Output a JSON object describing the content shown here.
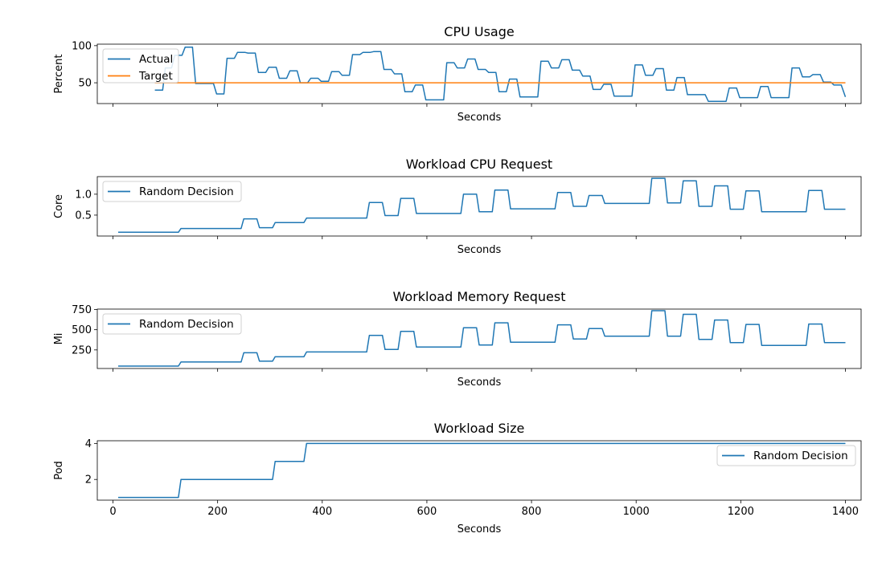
{
  "chart_data": [
    {
      "type": "line",
      "title": "CPU Usage",
      "xlabel": "Seconds",
      "ylabel": "Percent",
      "xlim": [
        -30,
        1430
      ],
      "ylim": [
        22,
        102
      ],
      "yticks": [
        50,
        100
      ],
      "xticks": [
        0,
        200,
        400,
        600,
        800,
        1000,
        1200,
        1400
      ],
      "show_xtick_labels": false,
      "legend": "upper-left",
      "series": [
        {
          "name": "Actual",
          "color": "#1f77b4",
          "step": true,
          "points": [
            [
              80,
              40
            ],
            [
              95,
              40
            ],
            [
              100,
              70
            ],
            [
              112,
              70
            ],
            [
              118,
              87
            ],
            [
              132,
              87
            ],
            [
              138,
              98
            ],
            [
              152,
              98
            ],
            [
              158,
              49
            ],
            [
              192,
              49
            ],
            [
              198,
              35
            ],
            [
              212,
              35
            ],
            [
              218,
              83
            ],
            [
              232,
              83
            ],
            [
              238,
              91
            ],
            [
              252,
              91
            ],
            [
              258,
              90
            ],
            [
              272,
              90
            ],
            [
              278,
              64
            ],
            [
              292,
              64
            ],
            [
              298,
              71
            ],
            [
              312,
              71
            ],
            [
              318,
              56
            ],
            [
              332,
              56
            ],
            [
              338,
              66
            ],
            [
              352,
              66
            ],
            [
              358,
              50
            ],
            [
              372,
              50
            ],
            [
              378,
              56
            ],
            [
              392,
              56
            ],
            [
              398,
              52
            ],
            [
              412,
              52
            ],
            [
              418,
              65
            ],
            [
              432,
              65
            ],
            [
              438,
              60
            ],
            [
              452,
              60
            ],
            [
              458,
              88
            ],
            [
              472,
              88
            ],
            [
              478,
              91
            ],
            [
              492,
              91
            ],
            [
              498,
              92
            ],
            [
              512,
              92
            ],
            [
              518,
              68
            ],
            [
              532,
              68
            ],
            [
              538,
              62
            ],
            [
              552,
              62
            ],
            [
              558,
              38
            ],
            [
              572,
              38
            ],
            [
              578,
              47
            ],
            [
              592,
              47
            ],
            [
              598,
              27
            ],
            [
              632,
              27
            ],
            [
              638,
              77
            ],
            [
              652,
              77
            ],
            [
              658,
              70
            ],
            [
              672,
              70
            ],
            [
              678,
              82
            ],
            [
              692,
              82
            ],
            [
              698,
              68
            ],
            [
              712,
              68
            ],
            [
              718,
              64
            ],
            [
              732,
              64
            ],
            [
              738,
              38
            ],
            [
              752,
              38
            ],
            [
              758,
              55
            ],
            [
              772,
              55
            ],
            [
              778,
              31
            ],
            [
              812,
              31
            ],
            [
              818,
              79
            ],
            [
              832,
              79
            ],
            [
              838,
              70
            ],
            [
              852,
              70
            ],
            [
              858,
              81
            ],
            [
              872,
              81
            ],
            [
              878,
              67
            ],
            [
              892,
              67
            ],
            [
              898,
              59
            ],
            [
              912,
              59
            ],
            [
              918,
              41
            ],
            [
              932,
              41
            ],
            [
              938,
              48
            ],
            [
              952,
              48
            ],
            [
              958,
              32
            ],
            [
              992,
              32
            ],
            [
              998,
              74
            ],
            [
              1012,
              74
            ],
            [
              1018,
              60
            ],
            [
              1032,
              60
            ],
            [
              1038,
              69
            ],
            [
              1052,
              69
            ],
            [
              1058,
              40
            ],
            [
              1072,
              40
            ],
            [
              1078,
              57
            ],
            [
              1092,
              57
            ],
            [
              1098,
              34
            ],
            [
              1132,
              34
            ],
            [
              1138,
              25
            ],
            [
              1172,
              25
            ],
            [
              1178,
              43
            ],
            [
              1192,
              43
            ],
            [
              1198,
              30
            ],
            [
              1232,
              30
            ],
            [
              1238,
              45
            ],
            [
              1252,
              45
            ],
            [
              1258,
              30
            ],
            [
              1292,
              30
            ],
            [
              1298,
              70
            ],
            [
              1312,
              70
            ],
            [
              1318,
              58
            ],
            [
              1332,
              58
            ],
            [
              1338,
              61
            ],
            [
              1352,
              61
            ],
            [
              1358,
              51
            ],
            [
              1372,
              51
            ],
            [
              1378,
              47
            ],
            [
              1392,
              47
            ],
            [
              1400,
              31
            ]
          ]
        },
        {
          "name": "Target",
          "color": "#ff7f0e",
          "step": false,
          "points": [
            [
              80,
              50
            ],
            [
              1400,
              50
            ]
          ]
        }
      ]
    },
    {
      "type": "line",
      "title": "Workload CPU Request",
      "xlabel": "Seconds",
      "ylabel": "Core",
      "xlim": [
        -30,
        1430
      ],
      "ylim": [
        0.0,
        1.42
      ],
      "yticks": [
        "0.5",
        "1.0"
      ],
      "xticks": [
        0,
        200,
        400,
        600,
        800,
        1000,
        1200,
        1400
      ],
      "show_xtick_labels": false,
      "legend": "upper-left",
      "series": [
        {
          "name": "Random Decision",
          "color": "#1f77b4",
          "step": true,
          "points": [
            [
              10,
              0.09
            ],
            [
              125,
              0.09
            ],
            [
              130,
              0.18
            ],
            [
              245,
              0.18
            ],
            [
              250,
              0.41
            ],
            [
              275,
              0.41
            ],
            [
              280,
              0.2
            ],
            [
              305,
              0.2
            ],
            [
              310,
              0.32
            ],
            [
              365,
              0.32
            ],
            [
              370,
              0.43
            ],
            [
              485,
              0.43
            ],
            [
              490,
              0.8
            ],
            [
              515,
              0.8
            ],
            [
              520,
              0.49
            ],
            [
              545,
              0.49
            ],
            [
              550,
              0.9
            ],
            [
              575,
              0.9
            ],
            [
              580,
              0.54
            ],
            [
              665,
              0.54
            ],
            [
              670,
              1.0
            ],
            [
              695,
              1.0
            ],
            [
              700,
              0.58
            ],
            [
              725,
              0.58
            ],
            [
              730,
              1.1
            ],
            [
              755,
              1.1
            ],
            [
              760,
              0.65
            ],
            [
              845,
              0.65
            ],
            [
              850,
              1.04
            ],
            [
              875,
              1.04
            ],
            [
              880,
              0.71
            ],
            [
              905,
              0.71
            ],
            [
              910,
              0.97
            ],
            [
              935,
              0.97
            ],
            [
              940,
              0.78
            ],
            [
              1025,
              0.78
            ],
            [
              1030,
              1.38
            ],
            [
              1055,
              1.38
            ],
            [
              1060,
              0.79
            ],
            [
              1085,
              0.79
            ],
            [
              1090,
              1.32
            ],
            [
              1115,
              1.32
            ],
            [
              1120,
              0.71
            ],
            [
              1145,
              0.71
            ],
            [
              1150,
              1.2
            ],
            [
              1175,
              1.2
            ],
            [
              1180,
              0.64
            ],
            [
              1205,
              0.64
            ],
            [
              1210,
              1.08
            ],
            [
              1235,
              1.08
            ],
            [
              1240,
              0.58
            ],
            [
              1325,
              0.58
            ],
            [
              1330,
              1.09
            ],
            [
              1355,
              1.09
            ],
            [
              1360,
              0.64
            ],
            [
              1400,
              0.64
            ]
          ]
        }
      ]
    },
    {
      "type": "line",
      "title": "Workload Memory Request",
      "xlabel": "Seconds",
      "ylabel": "Mi",
      "xlim": [
        -30,
        1430
      ],
      "ylim": [
        20,
        755
      ],
      "yticks": [
        250,
        500,
        750
      ],
      "xticks": [
        0,
        200,
        400,
        600,
        800,
        1000,
        1200,
        1400
      ],
      "show_xtick_labels": false,
      "legend": "upper-left",
      "series": [
        {
          "name": "Random Decision",
          "color": "#1f77b4",
          "step": true,
          "points": [
            [
              10,
              50
            ],
            [
              125,
              50
            ],
            [
              130,
              100
            ],
            [
              245,
              100
            ],
            [
              250,
              215
            ],
            [
              275,
              215
            ],
            [
              280,
              110
            ],
            [
              305,
              110
            ],
            [
              310,
              165
            ],
            [
              365,
              165
            ],
            [
              370,
              225
            ],
            [
              485,
              225
            ],
            [
              490,
              430
            ],
            [
              515,
              430
            ],
            [
              520,
              255
            ],
            [
              545,
              255
            ],
            [
              550,
              480
            ],
            [
              575,
              480
            ],
            [
              580,
              285
            ],
            [
              665,
              285
            ],
            [
              670,
              525
            ],
            [
              695,
              525
            ],
            [
              700,
              310
            ],
            [
              725,
              310
            ],
            [
              730,
              585
            ],
            [
              755,
              585
            ],
            [
              760,
              345
            ],
            [
              845,
              345
            ],
            [
              850,
              560
            ],
            [
              875,
              560
            ],
            [
              880,
              385
            ],
            [
              905,
              385
            ],
            [
              910,
              515
            ],
            [
              935,
              515
            ],
            [
              940,
              420
            ],
            [
              1025,
              420
            ],
            [
              1030,
              735
            ],
            [
              1055,
              735
            ],
            [
              1060,
              420
            ],
            [
              1085,
              420
            ],
            [
              1090,
              690
            ],
            [
              1115,
              690
            ],
            [
              1120,
              380
            ],
            [
              1145,
              380
            ],
            [
              1150,
              620
            ],
            [
              1175,
              620
            ],
            [
              1180,
              340
            ],
            [
              1205,
              340
            ],
            [
              1210,
              565
            ],
            [
              1235,
              565
            ],
            [
              1240,
              305
            ],
            [
              1325,
              305
            ],
            [
              1330,
              570
            ],
            [
              1355,
              570
            ],
            [
              1360,
              340
            ],
            [
              1400,
              340
            ]
          ]
        }
      ]
    },
    {
      "type": "line",
      "title": "Workload Size",
      "xlabel": "Seconds",
      "ylabel": "Pod",
      "xlim": [
        -30,
        1430
      ],
      "ylim": [
        0.85,
        4.15
      ],
      "yticks": [
        2,
        4
      ],
      "xticks": [
        0,
        200,
        400,
        600,
        800,
        1000,
        1200,
        1400
      ],
      "show_xtick_labels": true,
      "legend": "upper-right",
      "series": [
        {
          "name": "Random Decision",
          "color": "#1f77b4",
          "step": true,
          "points": [
            [
              10,
              1
            ],
            [
              125,
              1
            ],
            [
              130,
              2
            ],
            [
              305,
              2
            ],
            [
              310,
              3
            ],
            [
              365,
              3
            ],
            [
              370,
              4
            ],
            [
              1400,
              4
            ]
          ]
        }
      ]
    }
  ]
}
